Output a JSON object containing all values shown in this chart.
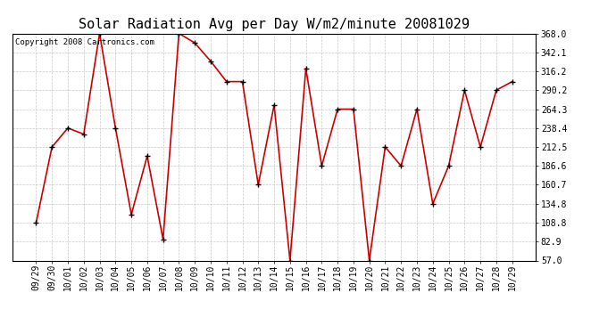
{
  "title": "Solar Radiation Avg per Day W/m2/minute 20081029",
  "copyright": "Copyright 2008 Cartronics.com",
  "labels": [
    "09/29",
    "09/30",
    "10/01",
    "10/02",
    "10/03",
    "10/04",
    "10/05",
    "10/06",
    "10/07",
    "10/08",
    "10/09",
    "10/10",
    "10/11",
    "10/12",
    "10/13",
    "10/14",
    "10/15",
    "10/16",
    "10/17",
    "10/18",
    "10/19",
    "10/20",
    "10/21",
    "10/22",
    "10/23",
    "10/24",
    "10/25",
    "10/26",
    "10/27",
    "10/28",
    "10/29"
  ],
  "values": [
    108.8,
    212.5,
    238.4,
    230.0,
    368.0,
    238.4,
    120.0,
    200.0,
    86.0,
    368.0,
    355.0,
    330.0,
    302.0,
    302.0,
    160.7,
    270.0,
    57.0,
    320.0,
    186.6,
    264.3,
    264.3,
    57.0,
    212.5,
    186.6,
    264.3,
    134.8,
    186.6,
    290.2,
    212.5,
    290.2,
    302.0
  ],
  "line_color": "#cc0000",
  "marker_color": "#000000",
  "bg_color": "#ffffff",
  "plot_bg_color": "#ffffff",
  "grid_color": "#bbbbbb",
  "ylim_min": 57.0,
  "ylim_max": 368.0,
  "yticks": [
    57.0,
    82.9,
    108.8,
    134.8,
    160.7,
    186.6,
    212.5,
    238.4,
    264.3,
    290.2,
    316.2,
    342.1,
    368.0
  ],
  "title_fontsize": 11,
  "tick_fontsize": 7,
  "copyright_fontsize": 6.5,
  "fig_width": 6.9,
  "fig_height": 3.75,
  "dpi": 100
}
